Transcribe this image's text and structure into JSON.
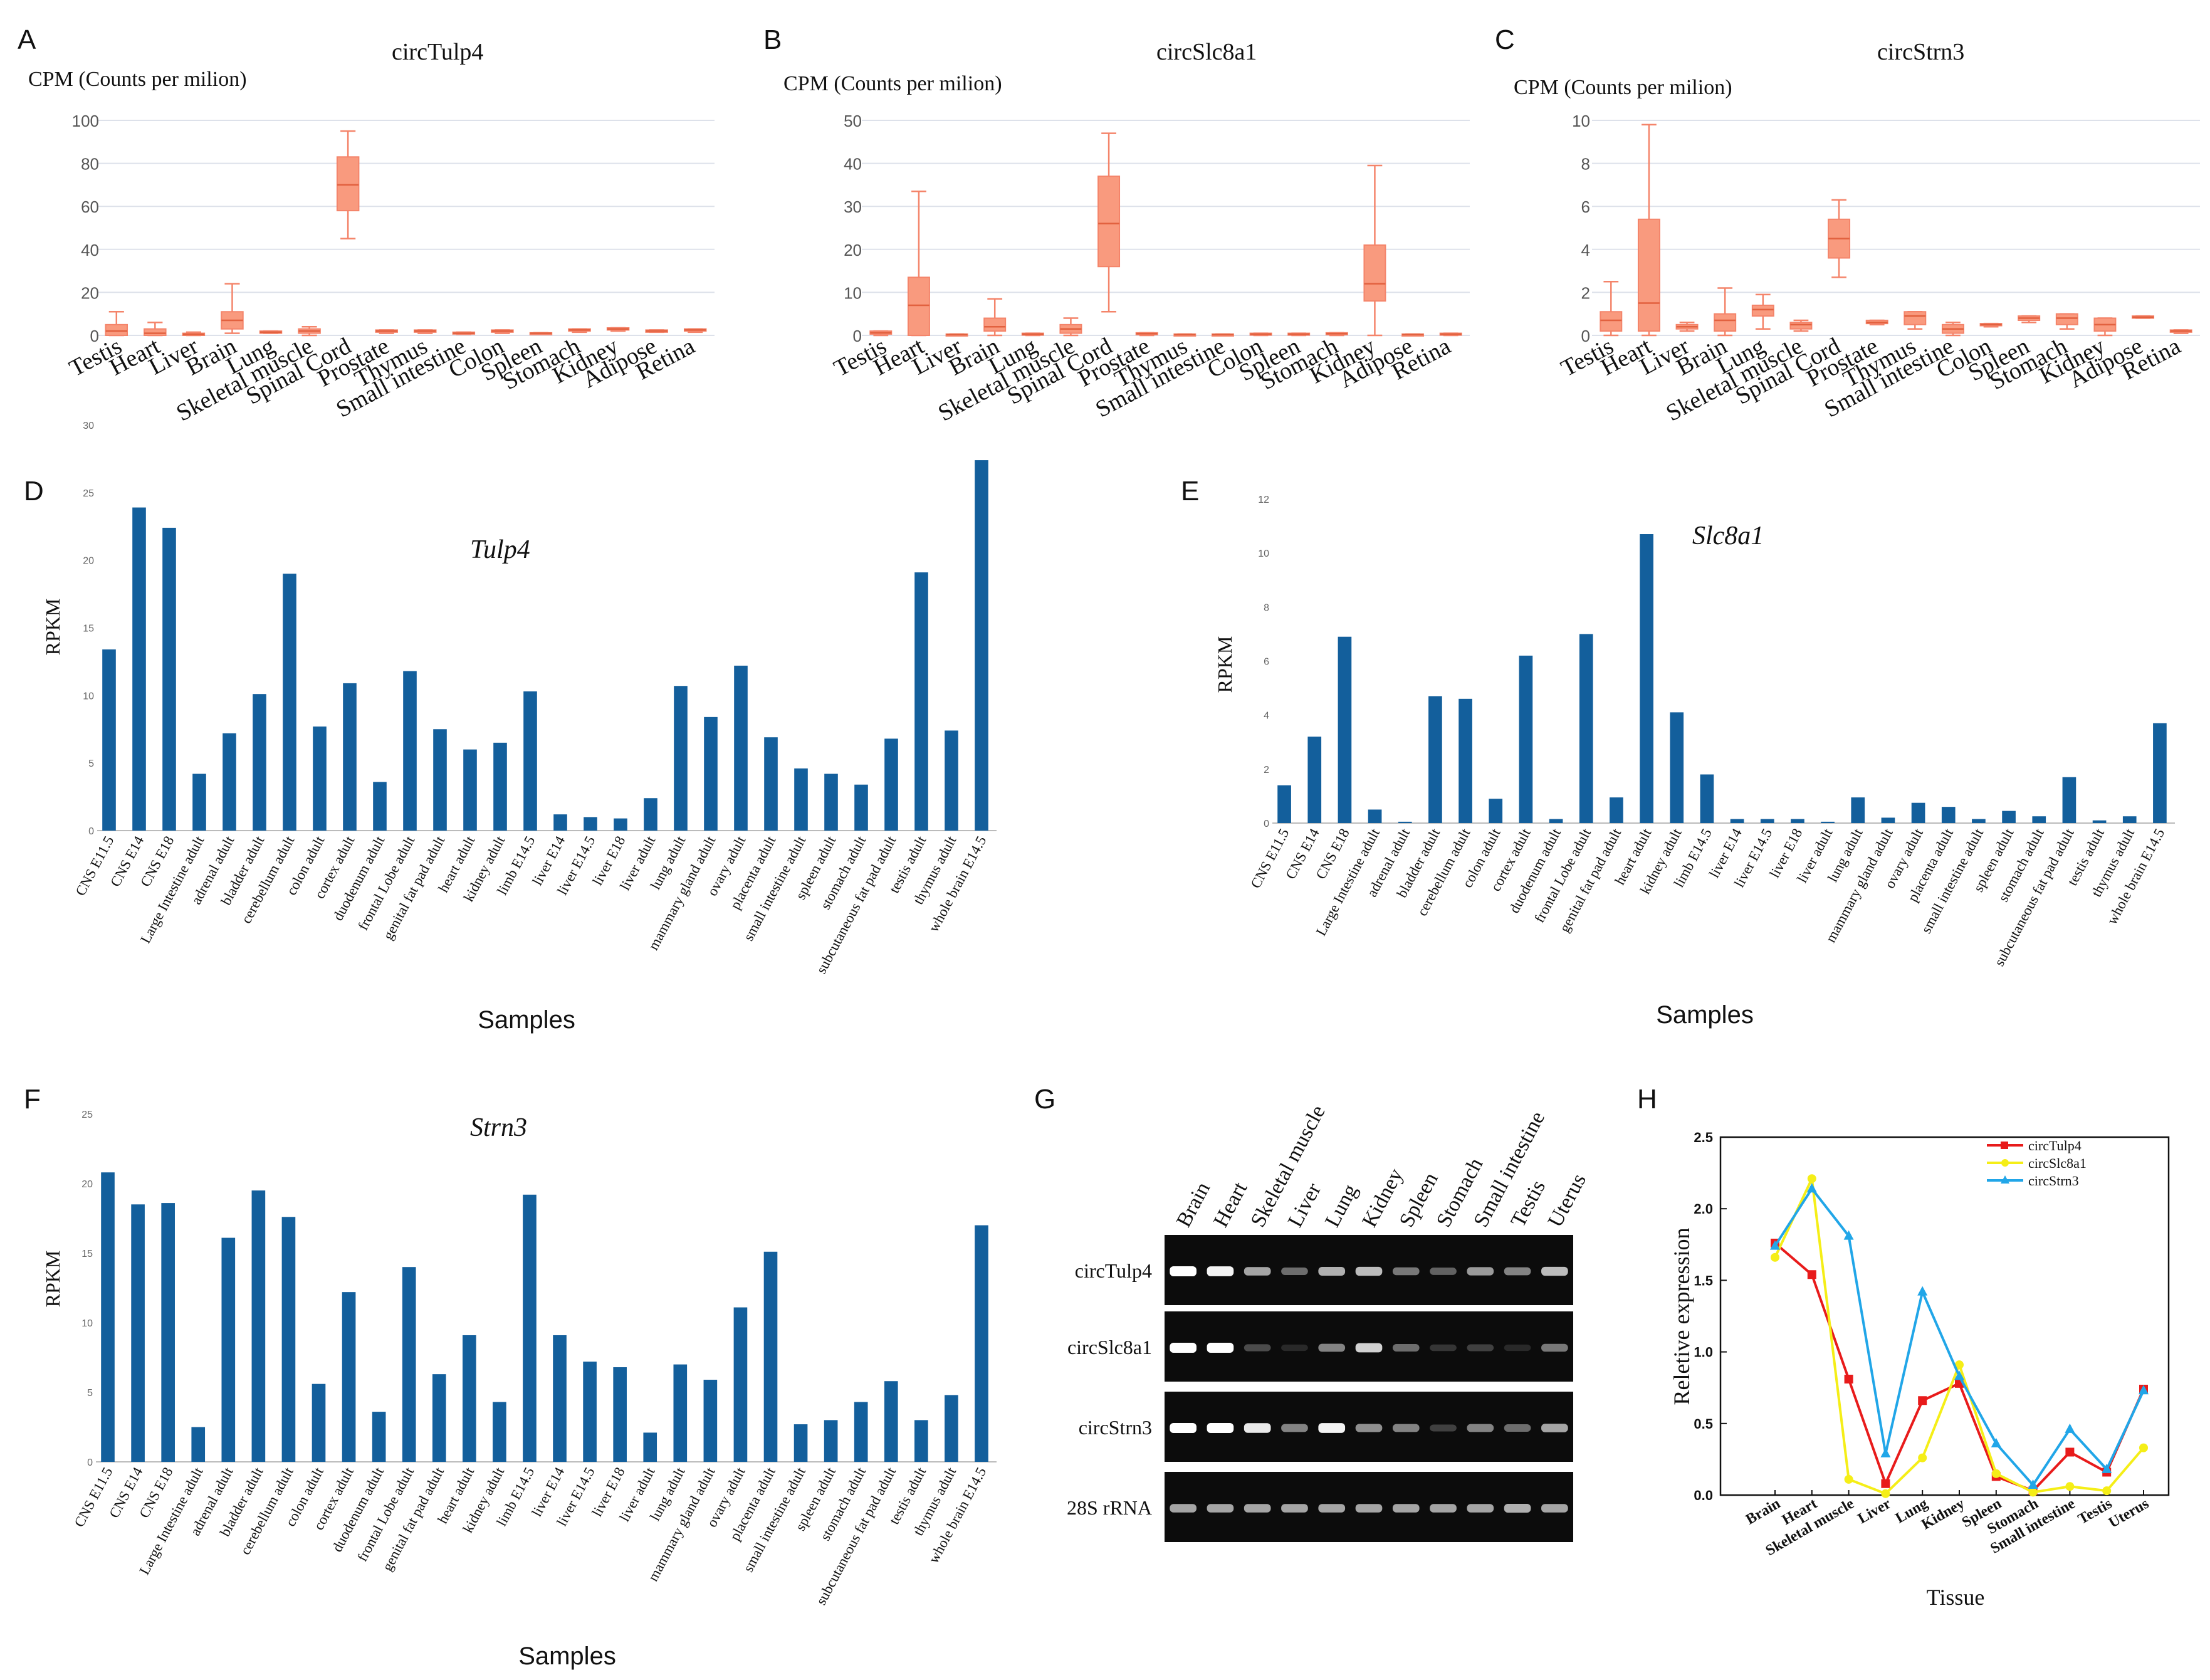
{
  "colors": {
    "box_fill": "#f99a7e",
    "box_stroke": "#f4846a",
    "bar": "#135f9c",
    "grid": "#dde1ea",
    "line_red": "#e81b1b",
    "line_yellow": "#f5ee17",
    "line_blue": "#21a6e8"
  },
  "chart_data": [
    {
      "panel": "A",
      "type": "box",
      "title": "circTulp4",
      "ylabel": "CPM (Counts per milion)",
      "ylim": [
        0,
        100
      ],
      "yticks": [
        "0",
        "20",
        "40",
        "60",
        "80",
        "100"
      ],
      "categories": [
        "Testis",
        "Heart",
        "Liver",
        "Brain",
        "Lung",
        "Skeletal muscle",
        "Spinal Cord",
        "Prostate",
        "Thymus",
        "Small  intestine",
        "Colon",
        "Spleen",
        "Stomach",
        "Kidney",
        "Adipose",
        "Retina"
      ],
      "boxes": [
        {
          "min": 0,
          "q1": 0,
          "median": 2,
          "q3": 5,
          "max": 11
        },
        {
          "min": 0,
          "q1": 0,
          "median": 1,
          "q3": 3,
          "max": 6
        },
        {
          "min": 0,
          "q1": 0,
          "median": 0.5,
          "q3": 1,
          "max": 1.5
        },
        {
          "min": 1,
          "q1": 3,
          "median": 7,
          "q3": 11,
          "max": 24
        },
        {
          "min": 1,
          "q1": 1,
          "median": 1.5,
          "q3": 2,
          "max": 2
        },
        {
          "min": 0,
          "q1": 1,
          "median": 2,
          "q3": 3,
          "max": 4
        },
        {
          "min": 45,
          "q1": 58,
          "median": 70,
          "q3": 83,
          "max": 95
        },
        {
          "min": 1,
          "q1": 1.5,
          "median": 2,
          "q3": 2.5,
          "max": 2.5
        },
        {
          "min": 1,
          "q1": 1.5,
          "median": 2,
          "q3": 2.5,
          "max": 2.5
        },
        {
          "min": 0.5,
          "q1": 1,
          "median": 1,
          "q3": 1.5,
          "max": 1.5
        },
        {
          "min": 1,
          "q1": 1.5,
          "median": 2,
          "q3": 2.5,
          "max": 2.5
        },
        {
          "min": 0.5,
          "q1": 0.5,
          "median": 1,
          "q3": 1.2,
          "max": 1.2
        },
        {
          "min": 1.5,
          "q1": 2,
          "median": 2.5,
          "q3": 3,
          "max": 3
        },
        {
          "min": 2,
          "q1": 2.5,
          "median": 3,
          "q3": 3.5,
          "max": 3.5
        },
        {
          "min": 1.5,
          "q1": 1.5,
          "median": 2,
          "q3": 2.5,
          "max": 2.5
        },
        {
          "min": 1.5,
          "q1": 2,
          "median": 2.5,
          "q3": 3,
          "max": 3
        }
      ]
    },
    {
      "panel": "B",
      "type": "box",
      "title": "circSlc8a1",
      "ylabel": "CPM (Counts per milion)",
      "ylim": [
        0,
        50
      ],
      "yticks": [
        "0",
        "10",
        "20",
        "30",
        "40",
        "50"
      ],
      "categories": [
        "Testis",
        "Heart",
        "Liver",
        "Brain",
        "Lung",
        "Skeletal muscle",
        "Spinal Cord",
        "Prostate",
        "Thymus",
        "Small  intestine",
        "Colon",
        "Spleen",
        "Stomach",
        "Kidney",
        "Adipose",
        "Retina"
      ],
      "boxes": [
        {
          "min": 0,
          "q1": 0.3,
          "median": 0.6,
          "q3": 1,
          "max": 1
        },
        {
          "min": 0,
          "q1": 0,
          "median": 7,
          "q3": 13.5,
          "max": 33.5
        },
        {
          "min": 0,
          "q1": 0,
          "median": 0.2,
          "q3": 0.3,
          "max": 0.3
        },
        {
          "min": 0,
          "q1": 1,
          "median": 2,
          "q3": 4,
          "max": 8.5
        },
        {
          "min": 0,
          "q1": 0.2,
          "median": 0.3,
          "q3": 0.5,
          "max": 0.5
        },
        {
          "min": 0,
          "q1": 0.5,
          "median": 1.5,
          "q3": 2.5,
          "max": 4
        },
        {
          "min": 5.5,
          "q1": 16,
          "median": 26,
          "q3": 37,
          "max": 47
        },
        {
          "min": 0,
          "q1": 0.2,
          "median": 0.4,
          "q3": 0.6,
          "max": 0.6
        },
        {
          "min": 0,
          "q1": 0.1,
          "median": 0.2,
          "q3": 0.3,
          "max": 0.3
        },
        {
          "min": 0,
          "q1": 0.1,
          "median": 0.2,
          "q3": 0.3,
          "max": 0.3
        },
        {
          "min": 0,
          "q1": 0.2,
          "median": 0.3,
          "q3": 0.5,
          "max": 0.5
        },
        {
          "min": 0,
          "q1": 0.2,
          "median": 0.3,
          "q3": 0.5,
          "max": 0.5
        },
        {
          "min": 0,
          "q1": 0.2,
          "median": 0.4,
          "q3": 0.6,
          "max": 0.6
        },
        {
          "min": 0,
          "q1": 8,
          "median": 12,
          "q3": 21,
          "max": 39.5
        },
        {
          "min": 0,
          "q1": 0.1,
          "median": 0.2,
          "q3": 0.3,
          "max": 0.3
        },
        {
          "min": 0,
          "q1": 0.2,
          "median": 0.3,
          "q3": 0.5,
          "max": 0.5
        }
      ]
    },
    {
      "panel": "C",
      "type": "box",
      "title": "circStrn3",
      "ylabel": "CPM (Counts per milion)",
      "ylim": [
        0,
        10
      ],
      "yticks": [
        "0",
        "2",
        "4",
        "6",
        "8",
        "10"
      ],
      "categories": [
        "Testis",
        "Heart",
        "Liver",
        "Brain",
        "Lung",
        "Skeletal muscle",
        "Spinal Cord",
        "Prostate",
        "Thymus",
        "Small  intestine",
        "Colon",
        "Spleen",
        "Stomach",
        "Kidney",
        "Adipose",
        "Retina"
      ],
      "boxes": [
        {
          "min": 0,
          "q1": 0.2,
          "median": 0.7,
          "q3": 1.1,
          "max": 2.5
        },
        {
          "min": 0,
          "q1": 0.2,
          "median": 1.5,
          "q3": 5.4,
          "max": 9.8
        },
        {
          "min": 0.2,
          "q1": 0.3,
          "median": 0.4,
          "q3": 0.5,
          "max": 0.6
        },
        {
          "min": 0,
          "q1": 0.2,
          "median": 0.7,
          "q3": 1.0,
          "max": 2.2
        },
        {
          "min": 0.3,
          "q1": 0.9,
          "median": 1.2,
          "q3": 1.4,
          "max": 1.9
        },
        {
          "min": 0.2,
          "q1": 0.3,
          "median": 0.5,
          "q3": 0.6,
          "max": 0.7
        },
        {
          "min": 2.7,
          "q1": 3.6,
          "median": 4.5,
          "q3": 5.4,
          "max": 6.3
        },
        {
          "min": 0.5,
          "q1": 0.55,
          "median": 0.6,
          "q3": 0.7,
          "max": 0.7
        },
        {
          "min": 0.3,
          "q1": 0.5,
          "median": 0.9,
          "q3": 1.1,
          "max": 1.1
        },
        {
          "min": 0,
          "q1": 0.1,
          "median": 0.3,
          "q3": 0.5,
          "max": 0.6
        },
        {
          "min": 0.4,
          "q1": 0.45,
          "median": 0.5,
          "q3": 0.55,
          "max": 0.55
        },
        {
          "min": 0.6,
          "q1": 0.7,
          "median": 0.8,
          "q3": 0.9,
          "max": 0.9
        },
        {
          "min": 0.3,
          "q1": 0.5,
          "median": 0.8,
          "q3": 1.0,
          "max": 1.0
        },
        {
          "min": 0,
          "q1": 0.2,
          "median": 0.5,
          "q3": 0.8,
          "max": 0.8
        },
        {
          "min": 0.8,
          "q1": 0.8,
          "median": 0.85,
          "q3": 0.9,
          "max": 0.9
        },
        {
          "min": 0.1,
          "q1": 0.15,
          "median": 0.2,
          "q3": 0.25,
          "max": 0.25
        }
      ]
    },
    {
      "panel": "D",
      "type": "bar",
      "title": "Tulp4",
      "xlabel": "Samples",
      "ylabel": "RPKM",
      "ylim": [
        0,
        30
      ],
      "yticks": [
        "0",
        "5",
        "10",
        "15",
        "20",
        "25",
        "30"
      ],
      "categories": [
        "CNS E11.5",
        "CNS E14",
        "CNS E18",
        "Large Intestine adult",
        "adrenal adult",
        "bladder adult",
        "cerebellum adult",
        "colon adult",
        "cortex adult",
        "duodenum adult",
        "frontal Lobe adult",
        "genital fat pad adult",
        "heart adult",
        "kidney adult",
        "limb E14.5",
        "liver E14",
        "liver E14.5",
        "liver E18",
        "liver adult",
        "lung adult",
        "mammary gland adult",
        "ovary adult",
        "placenta adult",
        "small intestine adult",
        "spleen adult",
        "stomach adult",
        "subcutaneous fat pad adult",
        "testis adult",
        "thymus adult",
        "whole brain E14.5"
      ],
      "values": [
        13.4,
        23.9,
        22.4,
        4.2,
        7.2,
        10.1,
        19.0,
        7.7,
        10.9,
        3.6,
        11.8,
        7.5,
        6.0,
        6.5,
        10.3,
        1.2,
        1.0,
        0.9,
        2.4,
        10.7,
        8.4,
        12.2,
        6.9,
        4.6,
        4.2,
        3.4,
        6.8,
        19.1,
        7.4,
        27.4
      ]
    },
    {
      "panel": "E",
      "type": "bar",
      "title": "Slc8a1",
      "xlabel": "Samples",
      "ylabel": "RPKM",
      "ylim": [
        0,
        12
      ],
      "yticks": [
        "0",
        "2",
        "4",
        "6",
        "8",
        "10",
        "12"
      ],
      "categories": [
        "CNS E11.5",
        "CNS E14",
        "CNS E18",
        "Large Intestine adult",
        "adrenal adult",
        "bladder adult",
        "cerebellum adult",
        "colon adult",
        "cortex adult",
        "duodenum adult",
        "frontal Lobe adult",
        "genital fat pad adult",
        "heart adult",
        "kidney adult",
        "limb E14.5",
        "liver E14",
        "liver E14.5",
        "liver E18",
        "liver adult",
        "lung adult",
        "mammary gland adult",
        "ovary adult",
        "placenta adult",
        "small intestine adult",
        "spleen adult",
        "stomach adult",
        "subcutaneous fat pad adult",
        "testis adult",
        "thymus adult",
        "whole brain E14.5"
      ],
      "values": [
        1.4,
        3.2,
        6.9,
        0.5,
        0.05,
        4.7,
        4.6,
        0.9,
        6.2,
        0.15,
        7.0,
        0.95,
        10.7,
        4.1,
        1.8,
        0.15,
        0.15,
        0.15,
        0.05,
        0.95,
        0.2,
        0.75,
        0.6,
        0.15,
        0.45,
        0.25,
        1.7,
        0.1,
        0.25,
        3.7
      ]
    },
    {
      "panel": "F",
      "type": "bar",
      "title": "Strn3",
      "xlabel": "Samples",
      "ylabel": "RPKM",
      "ylim": [
        0,
        25
      ],
      "yticks": [
        "0",
        "5",
        "10",
        "15",
        "20",
        "25"
      ],
      "categories": [
        "CNS E11.5",
        "CNS E14",
        "CNS E18",
        "Large Intestine adult",
        "adrenal adult",
        "bladder adult",
        "cerebellum adult",
        "colon adult",
        "cortex adult",
        "duodenum adult",
        "frontal Lobe adult",
        "genital fat pad adult",
        "heart adult",
        "kidney adult",
        "limb E14.5",
        "liver E14",
        "liver E14.5",
        "liver E18",
        "liver adult",
        "lung adult",
        "mammary gland adult",
        "ovary adult",
        "placenta adult",
        "small intestine adult",
        "spleen adult",
        "stomach adult",
        "subcutaneous fat pad adult",
        "testis adult",
        "thymus adult",
        "whole brain E14.5"
      ],
      "values": [
        20.8,
        18.5,
        18.6,
        2.5,
        16.1,
        19.5,
        17.6,
        5.6,
        12.2,
        3.6,
        14.0,
        6.3,
        9.1,
        4.3,
        19.2,
        9.1,
        7.2,
        6.8,
        2.1,
        7.0,
        5.9,
        11.1,
        15.1,
        2.7,
        3.0,
        4.3,
        5.8,
        3.0,
        4.8,
        17.0
      ]
    },
    {
      "panel": "G",
      "type": "gel",
      "lanes": [
        "Brain",
        "Heart",
        "Skeletal muscle",
        "Liver",
        "Lung",
        "Kidney",
        "Spleen",
        "Stomach",
        "Small  intestine",
        "Testis",
        "Uterus"
      ],
      "rows": [
        {
          "label": "circTulp4",
          "intensities": [
            1.0,
            0.95,
            0.6,
            0.35,
            0.65,
            0.7,
            0.4,
            0.3,
            0.55,
            0.45,
            0.7
          ]
        },
        {
          "label": "circSlc8a1",
          "intensities": [
            1.0,
            1.0,
            0.2,
            0.05,
            0.45,
            0.8,
            0.35,
            0.1,
            0.15,
            0.05,
            0.4
          ]
        },
        {
          "label": "circStrn3",
          "intensities": [
            1.0,
            1.0,
            0.9,
            0.45,
            0.95,
            0.5,
            0.45,
            0.15,
            0.45,
            0.35,
            0.6
          ]
        },
        {
          "label": "28S rRNA",
          "intensities": [
            0.6,
            0.6,
            0.6,
            0.6,
            0.6,
            0.6,
            0.6,
            0.6,
            0.6,
            0.65,
            0.6
          ]
        }
      ]
    },
    {
      "panel": "H",
      "type": "line",
      "xlabel": "Tissue",
      "ylabel": "Reletive expression",
      "ylim": [
        0,
        2.5
      ],
      "yticks": [
        "0.0",
        "0.5",
        "1.0",
        "1.5",
        "2.0",
        "2.5"
      ],
      "categories": [
        "Brain",
        "Heart",
        "Skeletal muscle",
        "Liver",
        "Lung",
        "Kidney",
        "Spleen",
        "Stomach",
        "Small intestine",
        "Testis",
        "Uterus"
      ],
      "series": [
        {
          "name": "circTulp4",
          "color": "#e81b1b",
          "marker": "square",
          "values": [
            1.76,
            1.54,
            0.81,
            0.08,
            0.66,
            0.78,
            0.13,
            0.03,
            0.3,
            0.16,
            0.74
          ]
        },
        {
          "name": "circSlc8a1",
          "color": "#f5ee17",
          "marker": "circle",
          "values": [
            1.66,
            2.21,
            0.11,
            0.01,
            0.26,
            0.91,
            0.15,
            0.02,
            0.06,
            0.03,
            0.33
          ]
        },
        {
          "name": "circStrn3",
          "color": "#21a6e8",
          "marker": "triangle",
          "values": [
            1.74,
            2.14,
            1.81,
            0.29,
            1.42,
            0.83,
            0.36,
            0.07,
            0.46,
            0.18,
            0.73
          ]
        }
      ]
    }
  ],
  "panel_letters": [
    "A",
    "B",
    "C",
    "D",
    "E",
    "F",
    "G",
    "H"
  ]
}
